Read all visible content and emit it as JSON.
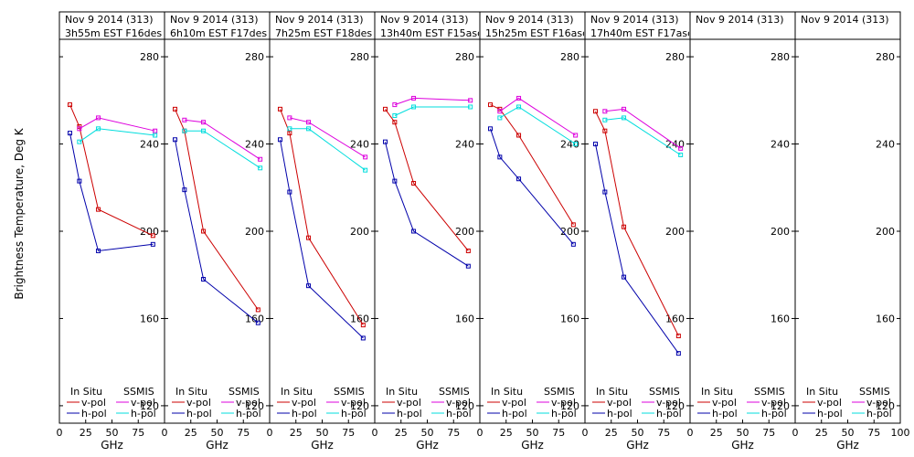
{
  "figure": {
    "ylabel": "Brightness Temperature, Deg K",
    "xlabel": "GHz",
    "x_ticks": [
      0,
      25,
      50,
      75,
      100
    ],
    "y_ticks": [
      120,
      160,
      200,
      240,
      280
    ],
    "xlim": [
      0,
      100
    ],
    "ylim": [
      112,
      288
    ],
    "legend": {
      "insitu": "In Situ",
      "ssmis": "SSMIS",
      "vpol": "v-pol",
      "hpol": "h-pol"
    },
    "colors": {
      "insitu_v": "#cc0000",
      "insitu_h": "#0000aa",
      "ssmis_v": "#dd00dd",
      "ssmis_h": "#00dddd",
      "frame": "#000000"
    }
  },
  "chart_data": [
    {
      "type": "line",
      "title_line1": "Nov 9 2014 (313)",
      "title_line2": "3h55m EST F16des",
      "xlabel": "GHz",
      "ylabel": "Brightness Temperature, Deg K",
      "ylim": [
        112,
        288
      ],
      "series": [
        {
          "name": "In Situ v-pol",
          "x": [
            10,
            19,
            37,
            89
          ],
          "values": [
            258,
            248,
            210,
            198
          ]
        },
        {
          "name": "In Situ h-pol",
          "x": [
            10,
            19,
            37,
            89
          ],
          "values": [
            245,
            223,
            191,
            194
          ]
        },
        {
          "name": "SSMIS v-pol",
          "x": [
            19,
            37,
            91
          ],
          "values": [
            247,
            252,
            246
          ]
        },
        {
          "name": "SSMIS h-pol",
          "x": [
            19,
            37,
            91
          ],
          "values": [
            241,
            247,
            244
          ]
        }
      ]
    },
    {
      "type": "line",
      "title_line1": "Nov 9 2014 (313)",
      "title_line2": "6h10m EST F17des",
      "xlabel": "GHz",
      "ylabel": "Brightness Temperature, Deg K",
      "ylim": [
        112,
        288
      ],
      "series": [
        {
          "name": "In Situ v-pol",
          "x": [
            10,
            19,
            37,
            89
          ],
          "values": [
            256,
            246,
            200,
            164
          ]
        },
        {
          "name": "In Situ h-pol",
          "x": [
            10,
            19,
            37,
            89
          ],
          "values": [
            242,
            219,
            178,
            158
          ]
        },
        {
          "name": "SSMIS v-pol",
          "x": [
            19,
            37,
            91
          ],
          "values": [
            251,
            250,
            233
          ]
        },
        {
          "name": "SSMIS h-pol",
          "x": [
            19,
            37,
            91
          ],
          "values": [
            246,
            246,
            229
          ]
        }
      ]
    },
    {
      "type": "line",
      "title_line1": "Nov 9 2014 (313)",
      "title_line2": "7h25m EST F18des",
      "xlabel": "GHz",
      "ylabel": "Brightness Temperature, Deg K",
      "ylim": [
        112,
        288
      ],
      "series": [
        {
          "name": "In Situ v-pol",
          "x": [
            10,
            19,
            37,
            89
          ],
          "values": [
            256,
            245,
            197,
            157
          ]
        },
        {
          "name": "In Situ h-pol",
          "x": [
            10,
            19,
            37,
            89
          ],
          "values": [
            242,
            218,
            175,
            151
          ]
        },
        {
          "name": "SSMIS v-pol",
          "x": [
            19,
            37,
            91
          ],
          "values": [
            252,
            250,
            234
          ]
        },
        {
          "name": "SSMIS h-pol",
          "x": [
            19,
            37,
            91
          ],
          "values": [
            247,
            247,
            228
          ]
        }
      ]
    },
    {
      "type": "line",
      "title_line1": "Nov 9 2014 (313)",
      "title_line2": "13h40m EST F15asc",
      "xlabel": "GHz",
      "ylabel": "Brightness Temperature, Deg K",
      "ylim": [
        112,
        288
      ],
      "series": [
        {
          "name": "In Situ v-pol",
          "x": [
            10,
            19,
            37,
            89
          ],
          "values": [
            256,
            250,
            222,
            191
          ]
        },
        {
          "name": "In Situ h-pol",
          "x": [
            10,
            19,
            37,
            89
          ],
          "values": [
            241,
            223,
            200,
            184
          ]
        },
        {
          "name": "SSMIS v-pol",
          "x": [
            19,
            37,
            91
          ],
          "values": [
            258,
            261,
            260
          ]
        },
        {
          "name": "SSMIS h-pol",
          "x": [
            19,
            37,
            91
          ],
          "values": [
            253,
            257,
            257
          ]
        }
      ]
    },
    {
      "type": "line",
      "title_line1": "Nov 9 2014 (313)",
      "title_line2": "15h25m EST F16asc",
      "xlabel": "GHz",
      "ylabel": "Brightness Temperature, Deg K",
      "ylim": [
        112,
        288
      ],
      "series": [
        {
          "name": "In Situ v-pol",
          "x": [
            10,
            19,
            37,
            89
          ],
          "values": [
            258,
            256,
            244,
            203
          ]
        },
        {
          "name": "In Situ h-pol",
          "x": [
            10,
            19,
            37,
            89
          ],
          "values": [
            247,
            234,
            224,
            194
          ]
        },
        {
          "name": "SSMIS v-pol",
          "x": [
            19,
            37,
            91
          ],
          "values": [
            255,
            261,
            244
          ]
        },
        {
          "name": "SSMIS h-pol",
          "x": [
            19,
            37,
            91
          ],
          "values": [
            252,
            257,
            240
          ]
        }
      ]
    },
    {
      "type": "line",
      "title_line1": "Nov 9 2014 (313)",
      "title_line2": "17h40m EST F17asc",
      "xlabel": "GHz",
      "ylabel": "Brightness Temperature, Deg K",
      "ylim": [
        112,
        288
      ],
      "series": [
        {
          "name": "In Situ v-pol",
          "x": [
            10,
            19,
            37,
            89
          ],
          "values": [
            255,
            246,
            202,
            152
          ]
        },
        {
          "name": "In Situ h-pol",
          "x": [
            10,
            19,
            37,
            89
          ],
          "values": [
            240,
            218,
            179,
            144
          ]
        },
        {
          "name": "SSMIS v-pol",
          "x": [
            19,
            37,
            91
          ],
          "values": [
            255,
            256,
            238
          ]
        },
        {
          "name": "SSMIS h-pol",
          "x": [
            19,
            37,
            91
          ],
          "values": [
            251,
            252,
            235
          ]
        }
      ]
    },
    {
      "type": "line",
      "title_line1": "Nov 9 2014 (313)",
      "title_line2": "",
      "xlabel": "GHz",
      "ylabel": "Brightness Temperature, Deg K",
      "ylim": [
        112,
        288
      ],
      "series": []
    },
    {
      "type": "line",
      "title_line1": "Nov 9 2014 (313)",
      "title_line2": "",
      "xlabel": "GHz",
      "ylabel": "Brightness Temperature, Deg K",
      "ylim": [
        112,
        288
      ],
      "series": []
    }
  ]
}
